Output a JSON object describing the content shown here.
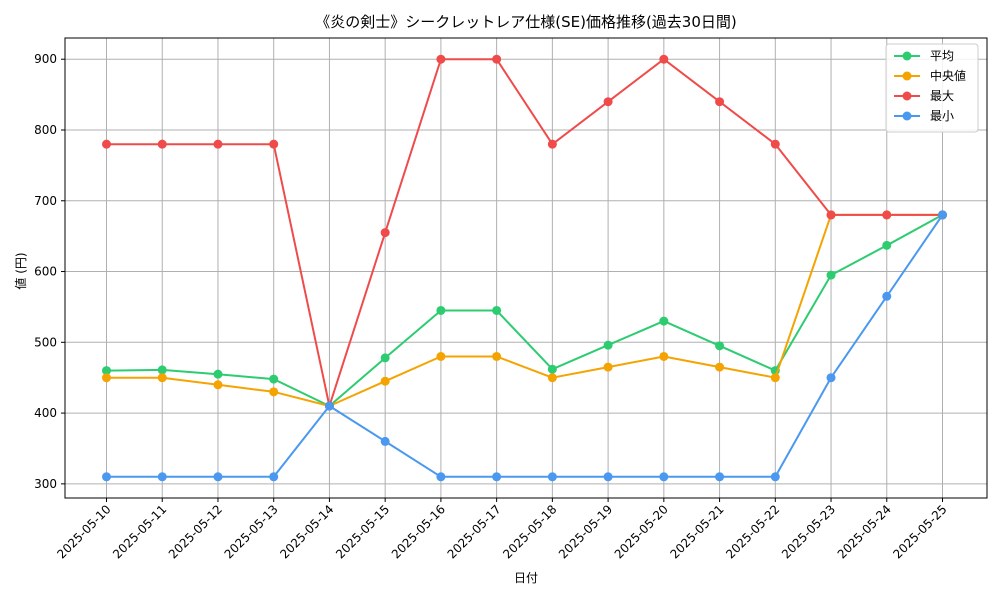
{
  "chart_data": {
    "type": "line",
    "title": "《炎の剣士》シークレットレア仕様(SE)価格推移(過去30日間)",
    "xlabel": "日付",
    "ylabel": "値 (円)",
    "categories": [
      "2025-05-10",
      "2025-05-11",
      "2025-05-12",
      "2025-05-13",
      "2025-05-14",
      "2025-05-15",
      "2025-05-16",
      "2025-05-17",
      "2025-05-18",
      "2025-05-19",
      "2025-05-20",
      "2025-05-21",
      "2025-05-22",
      "2025-05-23",
      "2025-05-24",
      "2025-05-25"
    ],
    "ylim": [
      280,
      930
    ],
    "yticks": [
      300,
      400,
      500,
      600,
      700,
      800,
      900
    ],
    "grid": true,
    "legend_position": "top-right",
    "series": [
      {
        "name": "平均",
        "color": "#2ecc71",
        "values": [
          460,
          461,
          455,
          448,
          410,
          478,
          545,
          545,
          462,
          496,
          530,
          495,
          460,
          595,
          637,
          680
        ]
      },
      {
        "name": "中央値",
        "color": "#f5a300",
        "values": [
          450,
          450,
          440,
          430,
          410,
          445,
          480,
          480,
          450,
          465,
          480,
          465,
          450,
          680,
          680,
          680
        ]
      },
      {
        "name": "最大",
        "color": "#f04b4b",
        "values": [
          780,
          780,
          780,
          780,
          410,
          655,
          900,
          900,
          780,
          840,
          900,
          840,
          780,
          680,
          680,
          680
        ]
      },
      {
        "name": "最小",
        "color": "#4a98f0",
        "values": [
          310,
          310,
          310,
          310,
          410,
          360,
          310,
          310,
          310,
          310,
          310,
          310,
          310,
          450,
          565,
          680
        ]
      }
    ]
  }
}
